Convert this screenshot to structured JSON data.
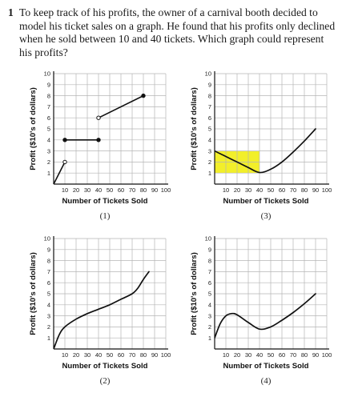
{
  "question": {
    "number": "1",
    "text": "To keep track of his profits, the owner of a carnival booth decided to model his ticket sales on a graph. He found that his profits only declined when he sold between 10 and 40 tickets. Which graph could represent his profits?"
  },
  "chart_data": [
    {
      "type": "line",
      "caption": "(1)",
      "xlabel": "Number of Tickets Sold",
      "ylabel": "Profit ($10's of dollars)",
      "x_ticks": [
        10,
        20,
        30,
        40,
        50,
        60,
        70,
        80,
        90,
        100
      ],
      "y_ticks": [
        1,
        2,
        3,
        4,
        5,
        6,
        7,
        8,
        9,
        10
      ],
      "xlim": [
        0,
        100
      ],
      "ylim": [
        0,
        10
      ],
      "grid": true,
      "segments": [
        {
          "points": [
            [
              0,
              0
            ],
            [
              10,
              2
            ]
          ],
          "end_open": true
        },
        {
          "points": [
            [
              10,
              4
            ],
            [
              40,
              4
            ]
          ],
          "start_closed": true,
          "end_closed": true
        },
        {
          "points": [
            [
              40,
              6
            ],
            [
              80,
              8
            ]
          ],
          "start_open": true,
          "end_closed": true
        }
      ]
    },
    {
      "type": "line",
      "caption": "(3)",
      "xlabel": "Number of Tickets Sold",
      "ylabel": "Profit ($10's of dollars)",
      "x_ticks": [
        10,
        20,
        30,
        40,
        50,
        60,
        70,
        80,
        90,
        100
      ],
      "y_ticks": [
        1,
        2,
        3,
        4,
        5,
        6,
        7,
        8,
        9,
        10
      ],
      "xlim": [
        0,
        100
      ],
      "ylim": [
        0,
        10
      ],
      "grid": true,
      "highlight": {
        "x": [
          0,
          40
        ],
        "y": [
          1,
          3
        ],
        "color": "#f2ef2a"
      },
      "curve": [
        [
          0,
          3
        ],
        [
          10,
          2.5
        ],
        [
          20,
          2
        ],
        [
          30,
          1.5
        ],
        [
          40,
          1.05
        ],
        [
          50,
          1.35
        ],
        [
          60,
          2
        ],
        [
          70,
          2.9
        ],
        [
          80,
          3.9
        ],
        [
          90,
          5
        ]
      ]
    },
    {
      "type": "line",
      "caption": "(2)",
      "xlabel": "Number of Tickets Sold",
      "ylabel": "Profit ($10's of dollars)",
      "x_ticks": [
        10,
        20,
        30,
        40,
        50,
        60,
        70,
        80,
        90,
        100
      ],
      "y_ticks": [
        1,
        2,
        3,
        4,
        5,
        6,
        7,
        8,
        9,
        10
      ],
      "xlim": [
        0,
        100
      ],
      "ylim": [
        0,
        10
      ],
      "grid": true,
      "curve": [
        [
          0,
          0
        ],
        [
          5,
          1.3
        ],
        [
          10,
          2
        ],
        [
          20,
          2.7
        ],
        [
          30,
          3.2
        ],
        [
          40,
          3.6
        ],
        [
          50,
          4
        ],
        [
          60,
          4.5
        ],
        [
          70,
          5
        ],
        [
          75,
          5.5
        ],
        [
          80,
          6.3
        ],
        [
          85,
          7
        ]
      ]
    },
    {
      "type": "line",
      "caption": "(4)",
      "xlabel": "Number of Tickets Sold",
      "ylabel": "Profit ($10's of dollars)",
      "x_ticks": [
        10,
        20,
        30,
        40,
        50,
        60,
        70,
        80,
        90,
        100
      ],
      "y_ticks": [
        1,
        2,
        3,
        4,
        5,
        6,
        7,
        8,
        9,
        10
      ],
      "xlim": [
        0,
        100
      ],
      "ylim": [
        0,
        10
      ],
      "grid": true,
      "curve": [
        [
          0,
          1
        ],
        [
          5,
          2.3
        ],
        [
          10,
          3
        ],
        [
          15,
          3.2
        ],
        [
          20,
          3.1
        ],
        [
          30,
          2.4
        ],
        [
          40,
          1.8
        ],
        [
          50,
          2
        ],
        [
          60,
          2.6
        ],
        [
          70,
          3.3
        ],
        [
          80,
          4.1
        ],
        [
          90,
          5
        ]
      ]
    }
  ]
}
